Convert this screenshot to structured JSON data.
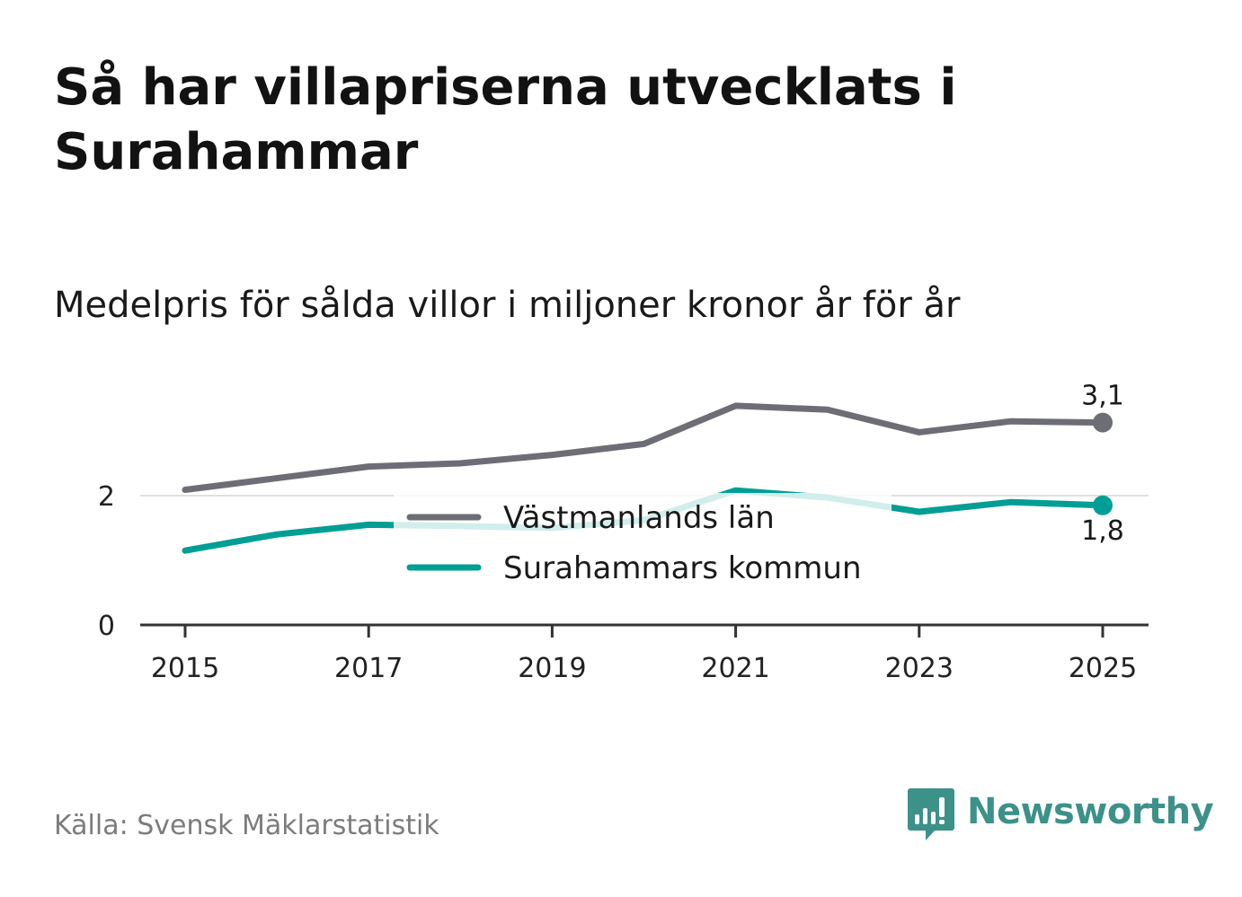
{
  "header": {
    "title": "Så har villapriserna utvecklats i Surahammar",
    "subtitle": "Medelpris för sålda villor i miljoner kronor år för år"
  },
  "footer": {
    "source": "Källa: Svensk Mäklarstatistik",
    "brand": "Newsworthy"
  },
  "colors": {
    "vastmanland": "#6d6e75",
    "surahammar": "#009e94",
    "surahammar_faded": "#cfeae7",
    "grid": "#e0e0e0",
    "axis": "#333333",
    "brand": "#3c9189"
  },
  "chart_data": {
    "type": "line",
    "title": "Så har villapriserna utvecklats i Surahammar",
    "subtitle": "Medelpris för sålda villor i miljoner kronor år för år",
    "x": [
      2015,
      2016,
      2017,
      2018,
      2019,
      2020,
      2021,
      2022,
      2023,
      2024,
      2025
    ],
    "xticks": [
      "2015",
      "2017",
      "2019",
      "2021",
      "2023",
      "2025"
    ],
    "yticks": [
      "0",
      "2"
    ],
    "ylim": [
      0,
      3.6
    ],
    "grid": true,
    "legend_position": "center",
    "series": [
      {
        "name": "Västmanlands län",
        "values": [
          2.09,
          2.27,
          2.45,
          2.5,
          2.63,
          2.8,
          3.39,
          3.33,
          2.98,
          3.15,
          3.13
        ],
        "end_label": "3,1"
      },
      {
        "name": "Surahammars kommun",
        "values": [
          1.15,
          1.4,
          1.55,
          1.53,
          1.5,
          1.62,
          2.08,
          1.97,
          1.75,
          1.9,
          1.85
        ],
        "end_label": "1,8"
      }
    ]
  }
}
